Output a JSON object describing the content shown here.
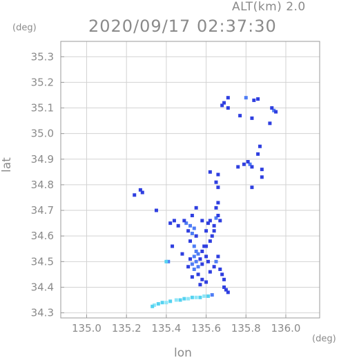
{
  "header": {
    "altitude": "ALT(km) 2.0",
    "timestamp": "2020/09/17 02:37:30"
  },
  "axes": {
    "x_unit": "(deg)",
    "y_unit": "(deg)",
    "x_label": "lon",
    "y_label": "lat"
  },
  "chart_data": {
    "type": "scatter",
    "title": "2020/09/17 02:37:30",
    "subtitle": "ALT(km) 2.0",
    "xlabel": "lon",
    "ylabel": "lat",
    "xlim": [
      134.87,
      136.17
    ],
    "ylim": [
      34.28,
      35.36
    ],
    "x_ticks": [
      135.0,
      135.2,
      135.4,
      135.6,
      135.8,
      136.0
    ],
    "x_tick_labels": [
      "135.0",
      "135.2",
      "135.4",
      "135.6",
      "135.8",
      "136.0"
    ],
    "y_ticks": [
      34.3,
      34.4,
      34.5,
      34.6,
      34.7,
      34.8,
      34.9,
      35.0,
      35.1,
      35.2,
      35.3
    ],
    "y_tick_labels": [
      "34.3",
      "34.4",
      "34.5",
      "34.6",
      "34.7",
      "34.8",
      "34.9",
      "35.0",
      "35.1",
      "35.2",
      "35.3"
    ],
    "grid": true,
    "colors": {
      "strong": "#2f3fe0",
      "medium": "#4f7df5",
      "light": "#55d2f0",
      "weak": "#8fe6f7"
    },
    "points": [
      {
        "x": 135.94,
        "y": 35.09,
        "c": "medium"
      },
      {
        "x": 135.93,
        "y": 35.1,
        "c": "strong"
      },
      {
        "x": 135.95,
        "y": 35.085,
        "c": "strong"
      },
      {
        "x": 135.84,
        "y": 35.13,
        "c": "strong"
      },
      {
        "x": 135.86,
        "y": 35.135,
        "c": "strong"
      },
      {
        "x": 135.8,
        "y": 35.14,
        "c": "medium"
      },
      {
        "x": 135.71,
        "y": 35.14,
        "c": "strong"
      },
      {
        "x": 135.69,
        "y": 35.12,
        "c": "strong"
      },
      {
        "x": 135.68,
        "y": 35.11,
        "c": "strong"
      },
      {
        "x": 135.71,
        "y": 35.1,
        "c": "strong"
      },
      {
        "x": 135.92,
        "y": 35.04,
        "c": "strong"
      },
      {
        "x": 135.83,
        "y": 35.06,
        "c": "strong"
      },
      {
        "x": 135.77,
        "y": 35.07,
        "c": "strong"
      },
      {
        "x": 135.82,
        "y": 34.88,
        "c": "medium"
      },
      {
        "x": 135.83,
        "y": 34.87,
        "c": "strong"
      },
      {
        "x": 135.81,
        "y": 34.89,
        "c": "strong"
      },
      {
        "x": 135.86,
        "y": 34.92,
        "c": "strong"
      },
      {
        "x": 135.87,
        "y": 34.95,
        "c": "strong"
      },
      {
        "x": 135.79,
        "y": 34.88,
        "c": "strong"
      },
      {
        "x": 135.76,
        "y": 34.87,
        "c": "strong"
      },
      {
        "x": 135.88,
        "y": 34.86,
        "c": "strong"
      },
      {
        "x": 135.83,
        "y": 34.79,
        "c": "strong"
      },
      {
        "x": 135.88,
        "y": 34.83,
        "c": "strong"
      },
      {
        "x": 135.65,
        "y": 34.81,
        "c": "strong"
      },
      {
        "x": 135.66,
        "y": 34.79,
        "c": "strong"
      },
      {
        "x": 135.66,
        "y": 34.84,
        "c": "strong"
      },
      {
        "x": 135.62,
        "y": 34.85,
        "c": "strong"
      },
      {
        "x": 135.66,
        "y": 34.73,
        "c": "strong"
      },
      {
        "x": 135.65,
        "y": 34.71,
        "c": "strong"
      },
      {
        "x": 135.24,
        "y": 34.76,
        "c": "strong"
      },
      {
        "x": 135.27,
        "y": 34.78,
        "c": "strong"
      },
      {
        "x": 135.28,
        "y": 34.77,
        "c": "strong"
      },
      {
        "x": 135.35,
        "y": 34.7,
        "c": "strong"
      },
      {
        "x": 135.53,
        "y": 34.68,
        "c": "strong"
      },
      {
        "x": 135.55,
        "y": 34.71,
        "c": "strong"
      },
      {
        "x": 135.5,
        "y": 34.65,
        "c": "medium"
      },
      {
        "x": 135.52,
        "y": 34.64,
        "c": "medium"
      },
      {
        "x": 135.54,
        "y": 34.63,
        "c": "medium"
      },
      {
        "x": 135.51,
        "y": 34.62,
        "c": "strong"
      },
      {
        "x": 135.53,
        "y": 34.61,
        "c": "medium"
      },
      {
        "x": 135.55,
        "y": 34.6,
        "c": "strong"
      },
      {
        "x": 135.58,
        "y": 34.66,
        "c": "strong"
      },
      {
        "x": 135.6,
        "y": 34.62,
        "c": "strong"
      },
      {
        "x": 135.61,
        "y": 34.65,
        "c": "strong"
      },
      {
        "x": 135.62,
        "y": 34.66,
        "c": "strong"
      },
      {
        "x": 135.64,
        "y": 34.64,
        "c": "strong"
      },
      {
        "x": 135.65,
        "y": 34.67,
        "c": "medium"
      },
      {
        "x": 135.66,
        "y": 34.68,
        "c": "strong"
      },
      {
        "x": 135.67,
        "y": 34.66,
        "c": "strong"
      },
      {
        "x": 135.64,
        "y": 34.62,
        "c": "strong"
      },
      {
        "x": 135.63,
        "y": 34.6,
        "c": "strong"
      },
      {
        "x": 135.62,
        "y": 34.58,
        "c": "strong"
      },
      {
        "x": 135.6,
        "y": 34.56,
        "c": "strong"
      },
      {
        "x": 135.42,
        "y": 34.65,
        "c": "strong"
      },
      {
        "x": 135.44,
        "y": 34.66,
        "c": "strong"
      },
      {
        "x": 135.46,
        "y": 34.64,
        "c": "strong"
      },
      {
        "x": 135.49,
        "y": 34.66,
        "c": "strong"
      },
      {
        "x": 135.43,
        "y": 34.56,
        "c": "strong"
      },
      {
        "x": 135.48,
        "y": 34.53,
        "c": "strong"
      },
      {
        "x": 135.52,
        "y": 34.58,
        "c": "strong"
      },
      {
        "x": 135.54,
        "y": 34.56,
        "c": "medium"
      },
      {
        "x": 135.55,
        "y": 34.54,
        "c": "medium"
      },
      {
        "x": 135.54,
        "y": 34.52,
        "c": "medium"
      },
      {
        "x": 135.56,
        "y": 34.53,
        "c": "medium"
      },
      {
        "x": 135.55,
        "y": 34.5,
        "c": "medium"
      },
      {
        "x": 135.53,
        "y": 34.49,
        "c": "medium"
      },
      {
        "x": 135.56,
        "y": 34.48,
        "c": "medium"
      },
      {
        "x": 135.54,
        "y": 34.47,
        "c": "medium"
      },
      {
        "x": 135.57,
        "y": 34.51,
        "c": "strong"
      },
      {
        "x": 135.52,
        "y": 34.51,
        "c": "strong"
      },
      {
        "x": 135.58,
        "y": 34.49,
        "c": "strong"
      },
      {
        "x": 135.51,
        "y": 34.48,
        "c": "strong"
      },
      {
        "x": 135.58,
        "y": 34.54,
        "c": "strong"
      },
      {
        "x": 135.59,
        "y": 34.56,
        "c": "strong"
      },
      {
        "x": 135.6,
        "y": 34.52,
        "c": "strong"
      },
      {
        "x": 135.61,
        "y": 34.5,
        "c": "strong"
      },
      {
        "x": 135.62,
        "y": 34.46,
        "c": "strong"
      },
      {
        "x": 135.64,
        "y": 34.48,
        "c": "strong"
      },
      {
        "x": 135.65,
        "y": 34.5,
        "c": "medium"
      },
      {
        "x": 135.66,
        "y": 34.52,
        "c": "strong"
      },
      {
        "x": 135.67,
        "y": 34.47,
        "c": "strong"
      },
      {
        "x": 135.68,
        "y": 34.45,
        "c": "strong"
      },
      {
        "x": 135.69,
        "y": 34.43,
        "c": "strong"
      },
      {
        "x": 135.56,
        "y": 34.45,
        "c": "strong"
      },
      {
        "x": 135.58,
        "y": 34.43,
        "c": "strong"
      },
      {
        "x": 135.6,
        "y": 34.42,
        "c": "strong"
      },
      {
        "x": 135.57,
        "y": 34.41,
        "c": "strong"
      },
      {
        "x": 135.53,
        "y": 34.44,
        "c": "strong"
      },
      {
        "x": 135.7,
        "y": 34.39,
        "c": "strong"
      },
      {
        "x": 135.71,
        "y": 34.38,
        "c": "strong"
      },
      {
        "x": 135.69,
        "y": 34.4,
        "c": "strong"
      },
      {
        "x": 135.41,
        "y": 34.5,
        "c": "medium"
      },
      {
        "x": 135.4,
        "y": 34.5,
        "c": "light"
      },
      {
        "x": 135.47,
        "y": 34.35,
        "c": "light"
      },
      {
        "x": 135.45,
        "y": 34.35,
        "c": "weak"
      },
      {
        "x": 135.49,
        "y": 34.355,
        "c": "light"
      },
      {
        "x": 135.51,
        "y": 34.355,
        "c": "weak"
      },
      {
        "x": 135.53,
        "y": 34.36,
        "c": "light"
      },
      {
        "x": 135.55,
        "y": 34.36,
        "c": "weak"
      },
      {
        "x": 135.42,
        "y": 34.345,
        "c": "light"
      },
      {
        "x": 135.4,
        "y": 34.34,
        "c": "weak"
      },
      {
        "x": 135.38,
        "y": 34.34,
        "c": "light"
      },
      {
        "x": 135.36,
        "y": 34.335,
        "c": "light"
      },
      {
        "x": 135.34,
        "y": 34.33,
        "c": "weak"
      },
      {
        "x": 135.33,
        "y": 34.325,
        "c": "light"
      },
      {
        "x": 135.57,
        "y": 34.36,
        "c": "light"
      },
      {
        "x": 135.59,
        "y": 34.365,
        "c": "weak"
      },
      {
        "x": 135.61,
        "y": 34.365,
        "c": "light"
      },
      {
        "x": 135.63,
        "y": 34.37,
        "c": "medium"
      }
    ]
  }
}
